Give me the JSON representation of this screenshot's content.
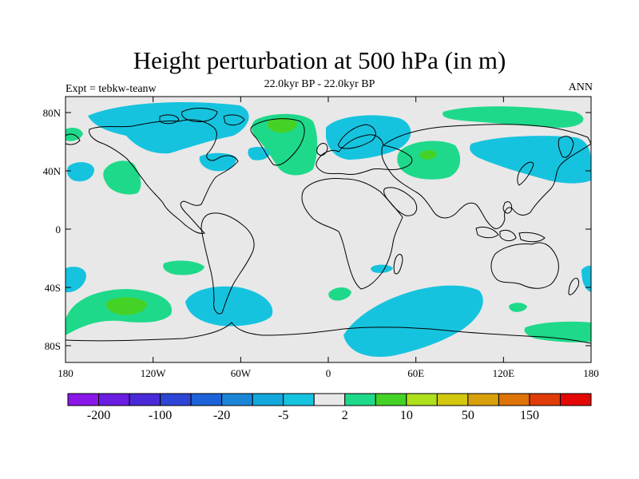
{
  "title": "Height perturbation at 500 hPa (in m)",
  "subtitle": "22.0kyr BP - 22.0kyr BP",
  "left_string": "Expt = tebkw-teanw",
  "right_string": "ANN",
  "lat_ticks": [
    "80N",
    "40N",
    "0",
    "40S",
    "80S"
  ],
  "lon_ticks": [
    "180",
    "120W",
    "60W",
    "0",
    "60E",
    "120E",
    "180"
  ],
  "colorbar": {
    "colors": [
      "#8a17e8",
      "#6a1de0",
      "#4a2ad8",
      "#2f45d6",
      "#1d62d8",
      "#1b86d8",
      "#12a8dd",
      "#16c3df",
      "#e8e8e8",
      "#1fd98a",
      "#45d227",
      "#aee01b",
      "#d3c80e",
      "#d8a10c",
      "#de7308",
      "#e03c07",
      "#e30806"
    ],
    "labels": [
      "-200",
      "-100",
      "-20",
      "-5",
      "2",
      "10",
      "50",
      "150"
    ]
  },
  "colors": {
    "neutral": "#e8e8e8",
    "cyan": "#16c3df",
    "cyan_dark": "#12a8dd",
    "green": "#1fd98a",
    "green_bright": "#45d227"
  }
}
